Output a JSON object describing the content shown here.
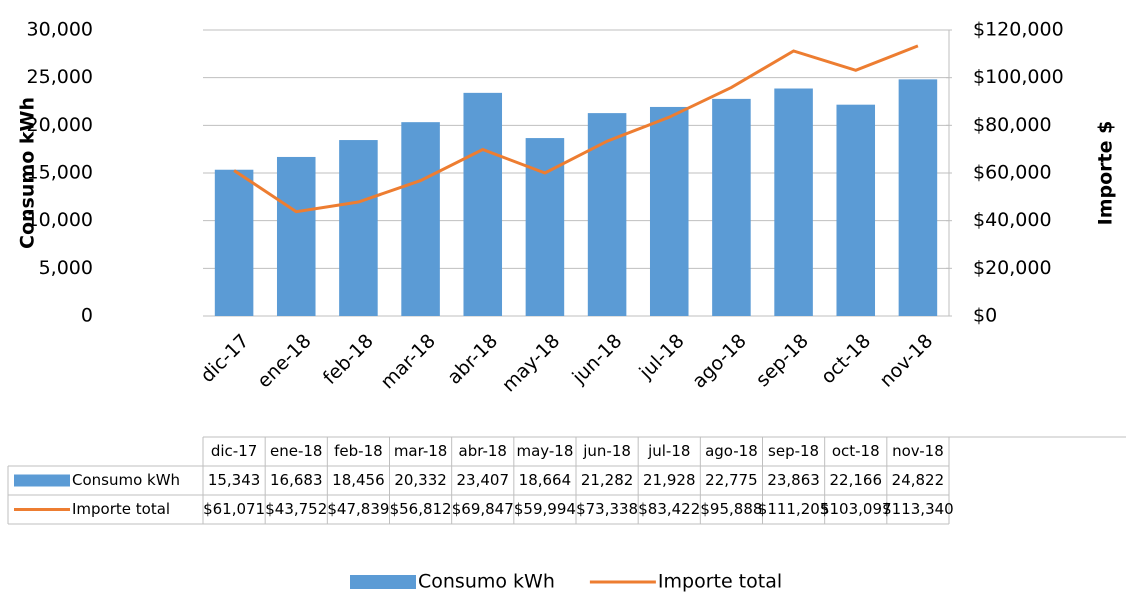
{
  "chart_data": {
    "type": "bar_line",
    "categories": [
      "dic-17",
      "ene-18",
      "feb-18",
      "mar-18",
      "abr-18",
      "may-18",
      "jun-18",
      "jul-18",
      "ago-18",
      "sep-18",
      "oct-18",
      "nov-18"
    ],
    "series": [
      {
        "name": "Consumo kWh",
        "color": "#5b9bd5",
        "type": "bar",
        "axis": "y",
        "values": [
          15343,
          16683,
          18456,
          20332,
          23407,
          18664,
          21282,
          21928,
          22775,
          23863,
          22166,
          24822
        ],
        "value_labels": [
          "15,343",
          "16,683",
          "18,456",
          "20,332",
          "23,407",
          "18,664",
          "21,282",
          "21,928",
          "22,775",
          "23,863",
          "22,166",
          "24,822"
        ]
      },
      {
        "name": "Importe total",
        "color": "#ed7d31",
        "type": "line",
        "axis": "y2",
        "values": [
          61071,
          43752,
          47839,
          56812,
          69847,
          59994,
          73338,
          83422,
          95888,
          111205,
          103097,
          113340
        ],
        "value_labels": [
          "$61,071",
          "$43,752",
          "$47,839",
          "$56,812",
          "$69,847",
          "$59,994",
          "$73,338",
          "$83,422",
          "$95,888",
          "$111,205",
          "$103,097",
          "$113,340"
        ]
      }
    ],
    "ylabel": "Consumo kWh",
    "y2label": "Importe $",
    "ylim": [
      0,
      30000
    ],
    "yticks": [
      0,
      {
        "value": 5000,
        "label": "5,000"
      },
      {
        "value": 10000,
        "label": "10,000"
      },
      {
        "value": 15000,
        "label": "15,000"
      },
      {
        "value": 20000,
        "label": "20,000"
      },
      {
        "value": 25000,
        "label": "25,000"
      },
      {
        "value": 30000,
        "label": "30,000"
      }
    ],
    "y2lim": [
      0,
      120000
    ],
    "y2ticks": [
      {
        "value": 0,
        "label": "$0"
      },
      {
        "value": 20000,
        "label": "$20,000"
      },
      {
        "value": 40000,
        "label": "$40,000"
      },
      {
        "value": 60000,
        "label": "$60,000"
      },
      {
        "value": 80000,
        "label": "$80,000"
      },
      {
        "value": 100000,
        "label": "$100,000"
      },
      {
        "value": 120000,
        "label": "$120,000"
      }
    ],
    "grid": true,
    "legend": "bottom"
  }
}
